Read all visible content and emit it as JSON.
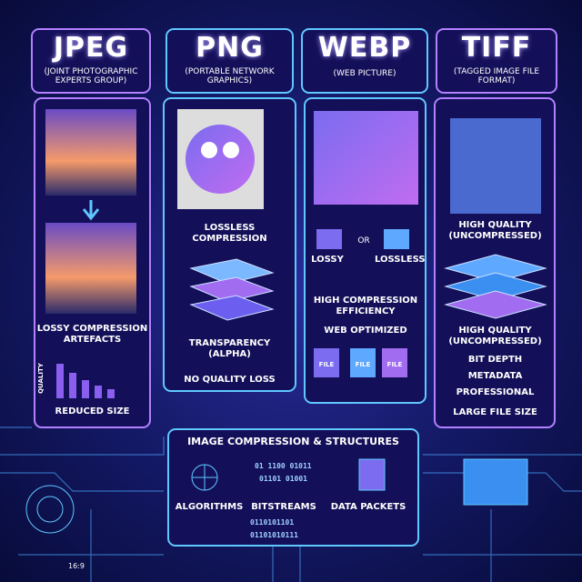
{
  "columns": [
    {
      "title": "JPEG",
      "subtitle": "(JOINT PHOTOGRAPHIC EXPERTS GROUP)",
      "items": [
        "LOSSY COMPRESSION ARTEFACTS",
        "QUALITY",
        "REDUCED SIZE"
      ]
    },
    {
      "title": "PNG",
      "subtitle": "(PORTABLE NETWORK GRAPHICS)",
      "items": [
        "LOSSLESS COMPRESSION",
        "TRANSPARENCY (ALPHA)",
        "NO QUALITY LOSS"
      ]
    },
    {
      "title": "WEBP",
      "subtitle": "(WEB PICTURE)",
      "items": [
        "LOSSY",
        "OR",
        "LOSSLESS",
        "HIGH COMPRESSION EFFICIENCY",
        "WEB OPTIMIZED",
        "FILE",
        "FILE",
        "FILE"
      ]
    },
    {
      "title": "TIFF",
      "subtitle": "(TAGGED IMAGE FILE FORMAT)",
      "items": [
        "HIGH QUALITY (UNCOMPRESSED)",
        "HIGH QUALITY (UNCOMPRESSED)",
        "BIT DEPTH",
        "METADATA",
        "PROFESSIONAL",
        "LARGE FILE SIZE"
      ]
    }
  ],
  "footer": {
    "title": "IMAGE COMPRESSION & STRUCTURES",
    "items": [
      "ALGORITHMS",
      "BITSTREAMS",
      "DATA PACKETS"
    ],
    "bits": [
      "01 1100 01011",
      "01101 01001",
      "0110101101",
      "01101010111"
    ],
    "ratio": "16:9"
  }
}
